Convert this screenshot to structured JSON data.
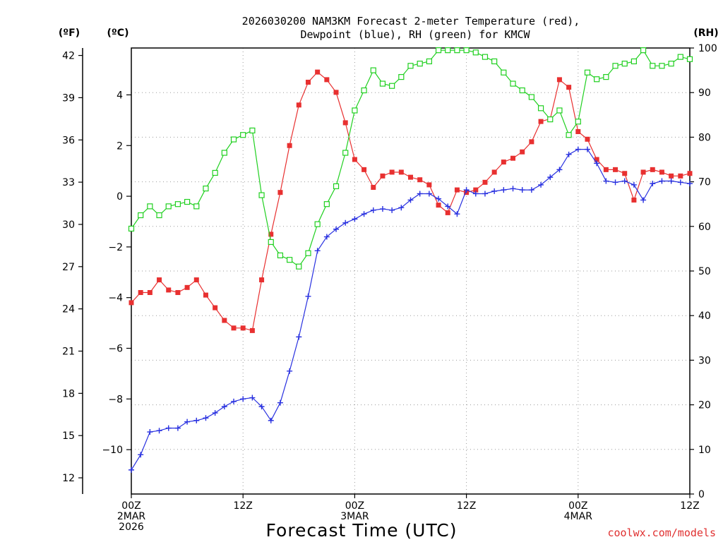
{
  "chart_data": {
    "type": "line",
    "title_line1": "2026030200 NAM3KM Forecast 2-meter Temperature (red),",
    "title_line2": "Dewpoint (blue), RH (green) for KMCW",
    "unit_f": "(ºF)",
    "unit_c": "(ºC)",
    "unit_rh": "(RH)",
    "xlabel": "Forecast Time (UTC)",
    "credit": "coolwx.com/models",
    "x_hours_range": [
      0,
      60
    ],
    "ylim_c": [
      -11.75,
      5.85
    ],
    "ylim_rh": [
      0,
      100
    ],
    "c_ticks": [
      "−10",
      "−8",
      "−6",
      "−4",
      "−2",
      "0",
      "2",
      "4"
    ],
    "f_ticks": [
      "12",
      "15",
      "18",
      "21",
      "24",
      "27",
      "30",
      "33",
      "36",
      "39",
      "42"
    ],
    "rh_ticks": [
      "0",
      "10",
      "20",
      "30",
      "40",
      "50",
      "60",
      "70",
      "80",
      "90",
      "100"
    ],
    "x_ticks": [
      {
        "hour": 0,
        "lines": [
          "00Z",
          "2MAR",
          "2026"
        ]
      },
      {
        "hour": 12,
        "lines": [
          "12Z"
        ]
      },
      {
        "hour": 24,
        "lines": [
          "00Z",
          "3MAR"
        ]
      },
      {
        "hour": 36,
        "lines": [
          "12Z"
        ]
      },
      {
        "hour": 48,
        "lines": [
          "00Z",
          "4MAR"
        ]
      },
      {
        "hour": 60,
        "lines": [
          "12Z"
        ]
      }
    ],
    "series": [
      {
        "name": "2-meter Temperature",
        "unit": "C",
        "color": "#e83030",
        "marker": "filled-square",
        "x": [
          0,
          1,
          2,
          3,
          4,
          5,
          6,
          7,
          8,
          9,
          10,
          11,
          12,
          13,
          14,
          15,
          16,
          17,
          18,
          19,
          20,
          21,
          22,
          23,
          24,
          25,
          26,
          27,
          28,
          29,
          30,
          31,
          32,
          33,
          34,
          35,
          36,
          37,
          38,
          39,
          40,
          41,
          42,
          43,
          44,
          45,
          46,
          47,
          48,
          49,
          50,
          51,
          52,
          53,
          54,
          55,
          56,
          57,
          58,
          59,
          60
        ],
        "values": [
          -4.2,
          -3.8,
          -3.8,
          -3.3,
          -3.7,
          -3.8,
          -3.6,
          -3.3,
          -3.9,
          -4.4,
          -4.9,
          -5.2,
          -5.2,
          -5.3,
          -3.3,
          -1.5,
          0.15,
          2.0,
          3.6,
          4.5,
          4.9,
          4.6,
          4.1,
          2.9,
          1.45,
          1.05,
          0.35,
          0.8,
          0.95,
          0.95,
          0.75,
          0.65,
          0.45,
          -0.35,
          -0.65,
          0.25,
          0.15,
          0.25,
          0.55,
          0.95,
          1.35,
          1.5,
          1.75,
          2.15,
          2.95,
          3.05,
          4.6,
          4.3,
          2.55,
          2.25,
          1.45,
          1.05,
          1.05,
          0.9,
          -0.15,
          0.95,
          1.05,
          0.95,
          0.8,
          0.8,
          0.9
        ]
      },
      {
        "name": "Dewpoint",
        "unit": "C",
        "color": "#2830e0",
        "marker": "plus",
        "x": [
          0,
          1,
          2,
          3,
          4,
          5,
          6,
          7,
          8,
          9,
          10,
          11,
          12,
          13,
          14,
          15,
          16,
          17,
          18,
          19,
          20,
          21,
          22,
          23,
          24,
          25,
          26,
          27,
          28,
          29,
          30,
          31,
          32,
          33,
          34,
          35,
          36,
          37,
          38,
          39,
          40,
          41,
          42,
          43,
          44,
          45,
          46,
          47,
          48,
          49,
          50,
          51,
          52,
          53,
          54,
          55,
          56,
          57,
          58,
          59,
          60
        ],
        "values": [
          -10.8,
          -10.2,
          -9.3,
          -9.25,
          -9.15,
          -9.15,
          -8.9,
          -8.85,
          -8.75,
          -8.55,
          -8.3,
          -8.1,
          -8.0,
          -7.95,
          -8.3,
          -8.85,
          -8.15,
          -6.9,
          -5.55,
          -3.95,
          -2.15,
          -1.6,
          -1.3,
          -1.05,
          -0.9,
          -0.7,
          -0.55,
          -0.5,
          -0.55,
          -0.45,
          -0.15,
          0.1,
          0.1,
          -0.1,
          -0.4,
          -0.7,
          0.25,
          0.1,
          0.1,
          0.2,
          0.25,
          0.3,
          0.25,
          0.25,
          0.45,
          0.75,
          1.05,
          1.65,
          1.85,
          1.85,
          1.3,
          0.6,
          0.55,
          0.6,
          0.45,
          -0.15,
          0.5,
          0.6,
          0.6,
          0.55,
          0.5
        ]
      },
      {
        "name": "RH",
        "unit": "%",
        "color": "#20d020",
        "marker": "open-square",
        "x": [
          0,
          1,
          2,
          3,
          4,
          5,
          6,
          7,
          8,
          9,
          10,
          11,
          12,
          13,
          14,
          15,
          16,
          17,
          18,
          19,
          20,
          21,
          22,
          23,
          24,
          25,
          26,
          27,
          28,
          29,
          30,
          31,
          32,
          33,
          34,
          35,
          36,
          37,
          38,
          39,
          40,
          41,
          42,
          43,
          44,
          45,
          46,
          47,
          48,
          49,
          50,
          51,
          52,
          53,
          54,
          55,
          56,
          57,
          58,
          59,
          60
        ],
        "values": [
          59.5,
          62.5,
          64.5,
          62.5,
          64.5,
          65,
          65.5,
          64.5,
          68.5,
          72,
          76.5,
          79.5,
          80.5,
          81.5,
          67,
          56.5,
          53.5,
          52.5,
          51,
          54,
          60.5,
          65,
          69,
          76.5,
          86,
          90.5,
          95,
          92,
          91.5,
          93.5,
          96,
          96.5,
          97,
          99.5,
          99.5,
          99.5,
          99.5,
          99,
          98,
          97,
          94.5,
          92,
          90.5,
          89,
          86.5,
          84,
          86,
          80.5,
          83.5,
          94.5,
          93,
          93.5,
          96,
          96.5,
          97,
          99.5,
          96,
          96,
          96.5,
          98,
          97.5
        ]
      }
    ]
  }
}
